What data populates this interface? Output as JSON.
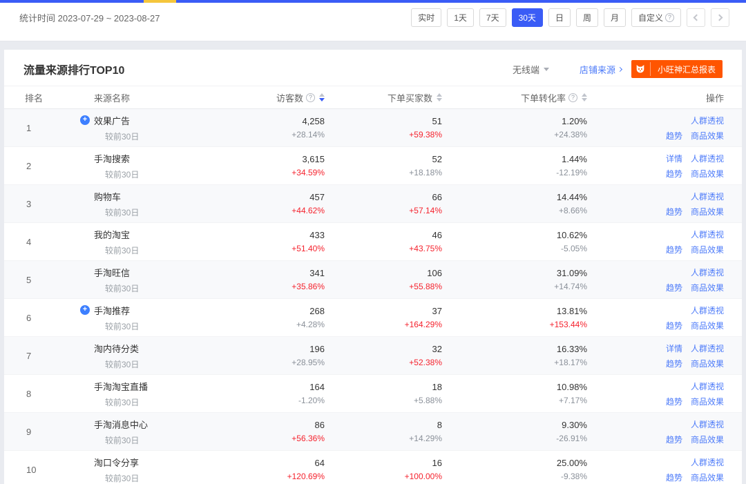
{
  "topbar": {
    "stat_time": "统计时间 2023-07-29 ~ 2023-08-27",
    "range_buttons": [
      {
        "label": "实时",
        "active": false,
        "help": false
      },
      {
        "label": "1天",
        "active": false,
        "help": false
      },
      {
        "label": "7天",
        "active": false,
        "help": false
      },
      {
        "label": "30天",
        "active": true,
        "help": false
      },
      {
        "label": "日",
        "active": false,
        "help": false
      },
      {
        "label": "周",
        "active": false,
        "help": false
      },
      {
        "label": "月",
        "active": false,
        "help": false
      },
      {
        "label": "自定义",
        "active": false,
        "help": true
      }
    ]
  },
  "panel": {
    "title": "流量来源排行TOP10",
    "terminal_filter": "无线端",
    "source_link": "店铺来源",
    "report_button": "小旺神汇总报表"
  },
  "table": {
    "columns": {
      "rank": "排名",
      "name": "来源名称",
      "visitors": "访客数",
      "buyers": "下单买家数",
      "conversion": "下单转化率",
      "actions": "操作"
    },
    "compare_label": "较前30日",
    "action_labels": {
      "detail": "详情",
      "audience": "人群透视",
      "trend": "趋势",
      "product": "商品效果"
    },
    "rows": [
      {
        "rank": "1",
        "name": "效果广告",
        "badge": true,
        "visitors": "4,258",
        "visitors_change": "+28.14%",
        "visitors_change_color": "gray",
        "buyers": "51",
        "buyers_change": "+59.38%",
        "buyers_change_color": "red",
        "conversion": "1.20%",
        "conversion_change": "+24.38%",
        "conversion_change_color": "gray",
        "detail": false
      },
      {
        "rank": "2",
        "name": "手淘搜索",
        "badge": false,
        "visitors": "3,615",
        "visitors_change": "+34.59%",
        "visitors_change_color": "red",
        "buyers": "52",
        "buyers_change": "+18.18%",
        "buyers_change_color": "gray",
        "conversion": "1.44%",
        "conversion_change": "-12.19%",
        "conversion_change_color": "gray",
        "detail": true
      },
      {
        "rank": "3",
        "name": "购物车",
        "badge": false,
        "visitors": "457",
        "visitors_change": "+44.62%",
        "visitors_change_color": "red",
        "buyers": "66",
        "buyers_change": "+57.14%",
        "buyers_change_color": "red",
        "conversion": "14.44%",
        "conversion_change": "+8.66%",
        "conversion_change_color": "gray",
        "detail": false
      },
      {
        "rank": "4",
        "name": "我的淘宝",
        "badge": false,
        "visitors": "433",
        "visitors_change": "+51.40%",
        "visitors_change_color": "red",
        "buyers": "46",
        "buyers_change": "+43.75%",
        "buyers_change_color": "red",
        "conversion": "10.62%",
        "conversion_change": "-5.05%",
        "conversion_change_color": "gray",
        "detail": false
      },
      {
        "rank": "5",
        "name": "手淘旺信",
        "badge": false,
        "visitors": "341",
        "visitors_change": "+35.86%",
        "visitors_change_color": "red",
        "buyers": "106",
        "buyers_change": "+55.88%",
        "buyers_change_color": "red",
        "conversion": "31.09%",
        "conversion_change": "+14.74%",
        "conversion_change_color": "gray",
        "detail": false
      },
      {
        "rank": "6",
        "name": "手淘推荐",
        "badge": true,
        "visitors": "268",
        "visitors_change": "+4.28%",
        "visitors_change_color": "gray",
        "buyers": "37",
        "buyers_change": "+164.29%",
        "buyers_change_color": "red",
        "conversion": "13.81%",
        "conversion_change": "+153.44%",
        "conversion_change_color": "red",
        "detail": false
      },
      {
        "rank": "7",
        "name": "淘内待分类",
        "badge": false,
        "visitors": "196",
        "visitors_change": "+28.95%",
        "visitors_change_color": "gray",
        "buyers": "32",
        "buyers_change": "+52.38%",
        "buyers_change_color": "red",
        "conversion": "16.33%",
        "conversion_change": "+18.17%",
        "conversion_change_color": "gray",
        "detail": true
      },
      {
        "rank": "8",
        "name": "手淘淘宝直播",
        "badge": false,
        "visitors": "164",
        "visitors_change": "-1.20%",
        "visitors_change_color": "gray",
        "buyers": "18",
        "buyers_change": "+5.88%",
        "buyers_change_color": "gray",
        "conversion": "10.98%",
        "conversion_change": "+7.17%",
        "conversion_change_color": "gray",
        "detail": false
      },
      {
        "rank": "9",
        "name": "手淘消息中心",
        "badge": false,
        "visitors": "86",
        "visitors_change": "+56.36%",
        "visitors_change_color": "red",
        "buyers": "8",
        "buyers_change": "+14.29%",
        "buyers_change_color": "gray",
        "conversion": "9.30%",
        "conversion_change": "-26.91%",
        "conversion_change_color": "gray",
        "detail": false
      },
      {
        "rank": "10",
        "name": "淘口令分享",
        "badge": false,
        "visitors": "64",
        "visitors_change": "+120.69%",
        "visitors_change_color": "red",
        "buyers": "16",
        "buyers_change": "+100.00%",
        "buyers_change_color": "red",
        "conversion": "25.00%",
        "conversion_change": "-9.38%",
        "conversion_change_color": "gray",
        "detail": false
      }
    ]
  },
  "colors": {
    "accent_blue": "#3A5CF6",
    "link_blue": "#4D7BF9",
    "increase_red": "#F5222D",
    "report_orange": "#FF5500",
    "strip_yellow": "#F5C63C"
  }
}
